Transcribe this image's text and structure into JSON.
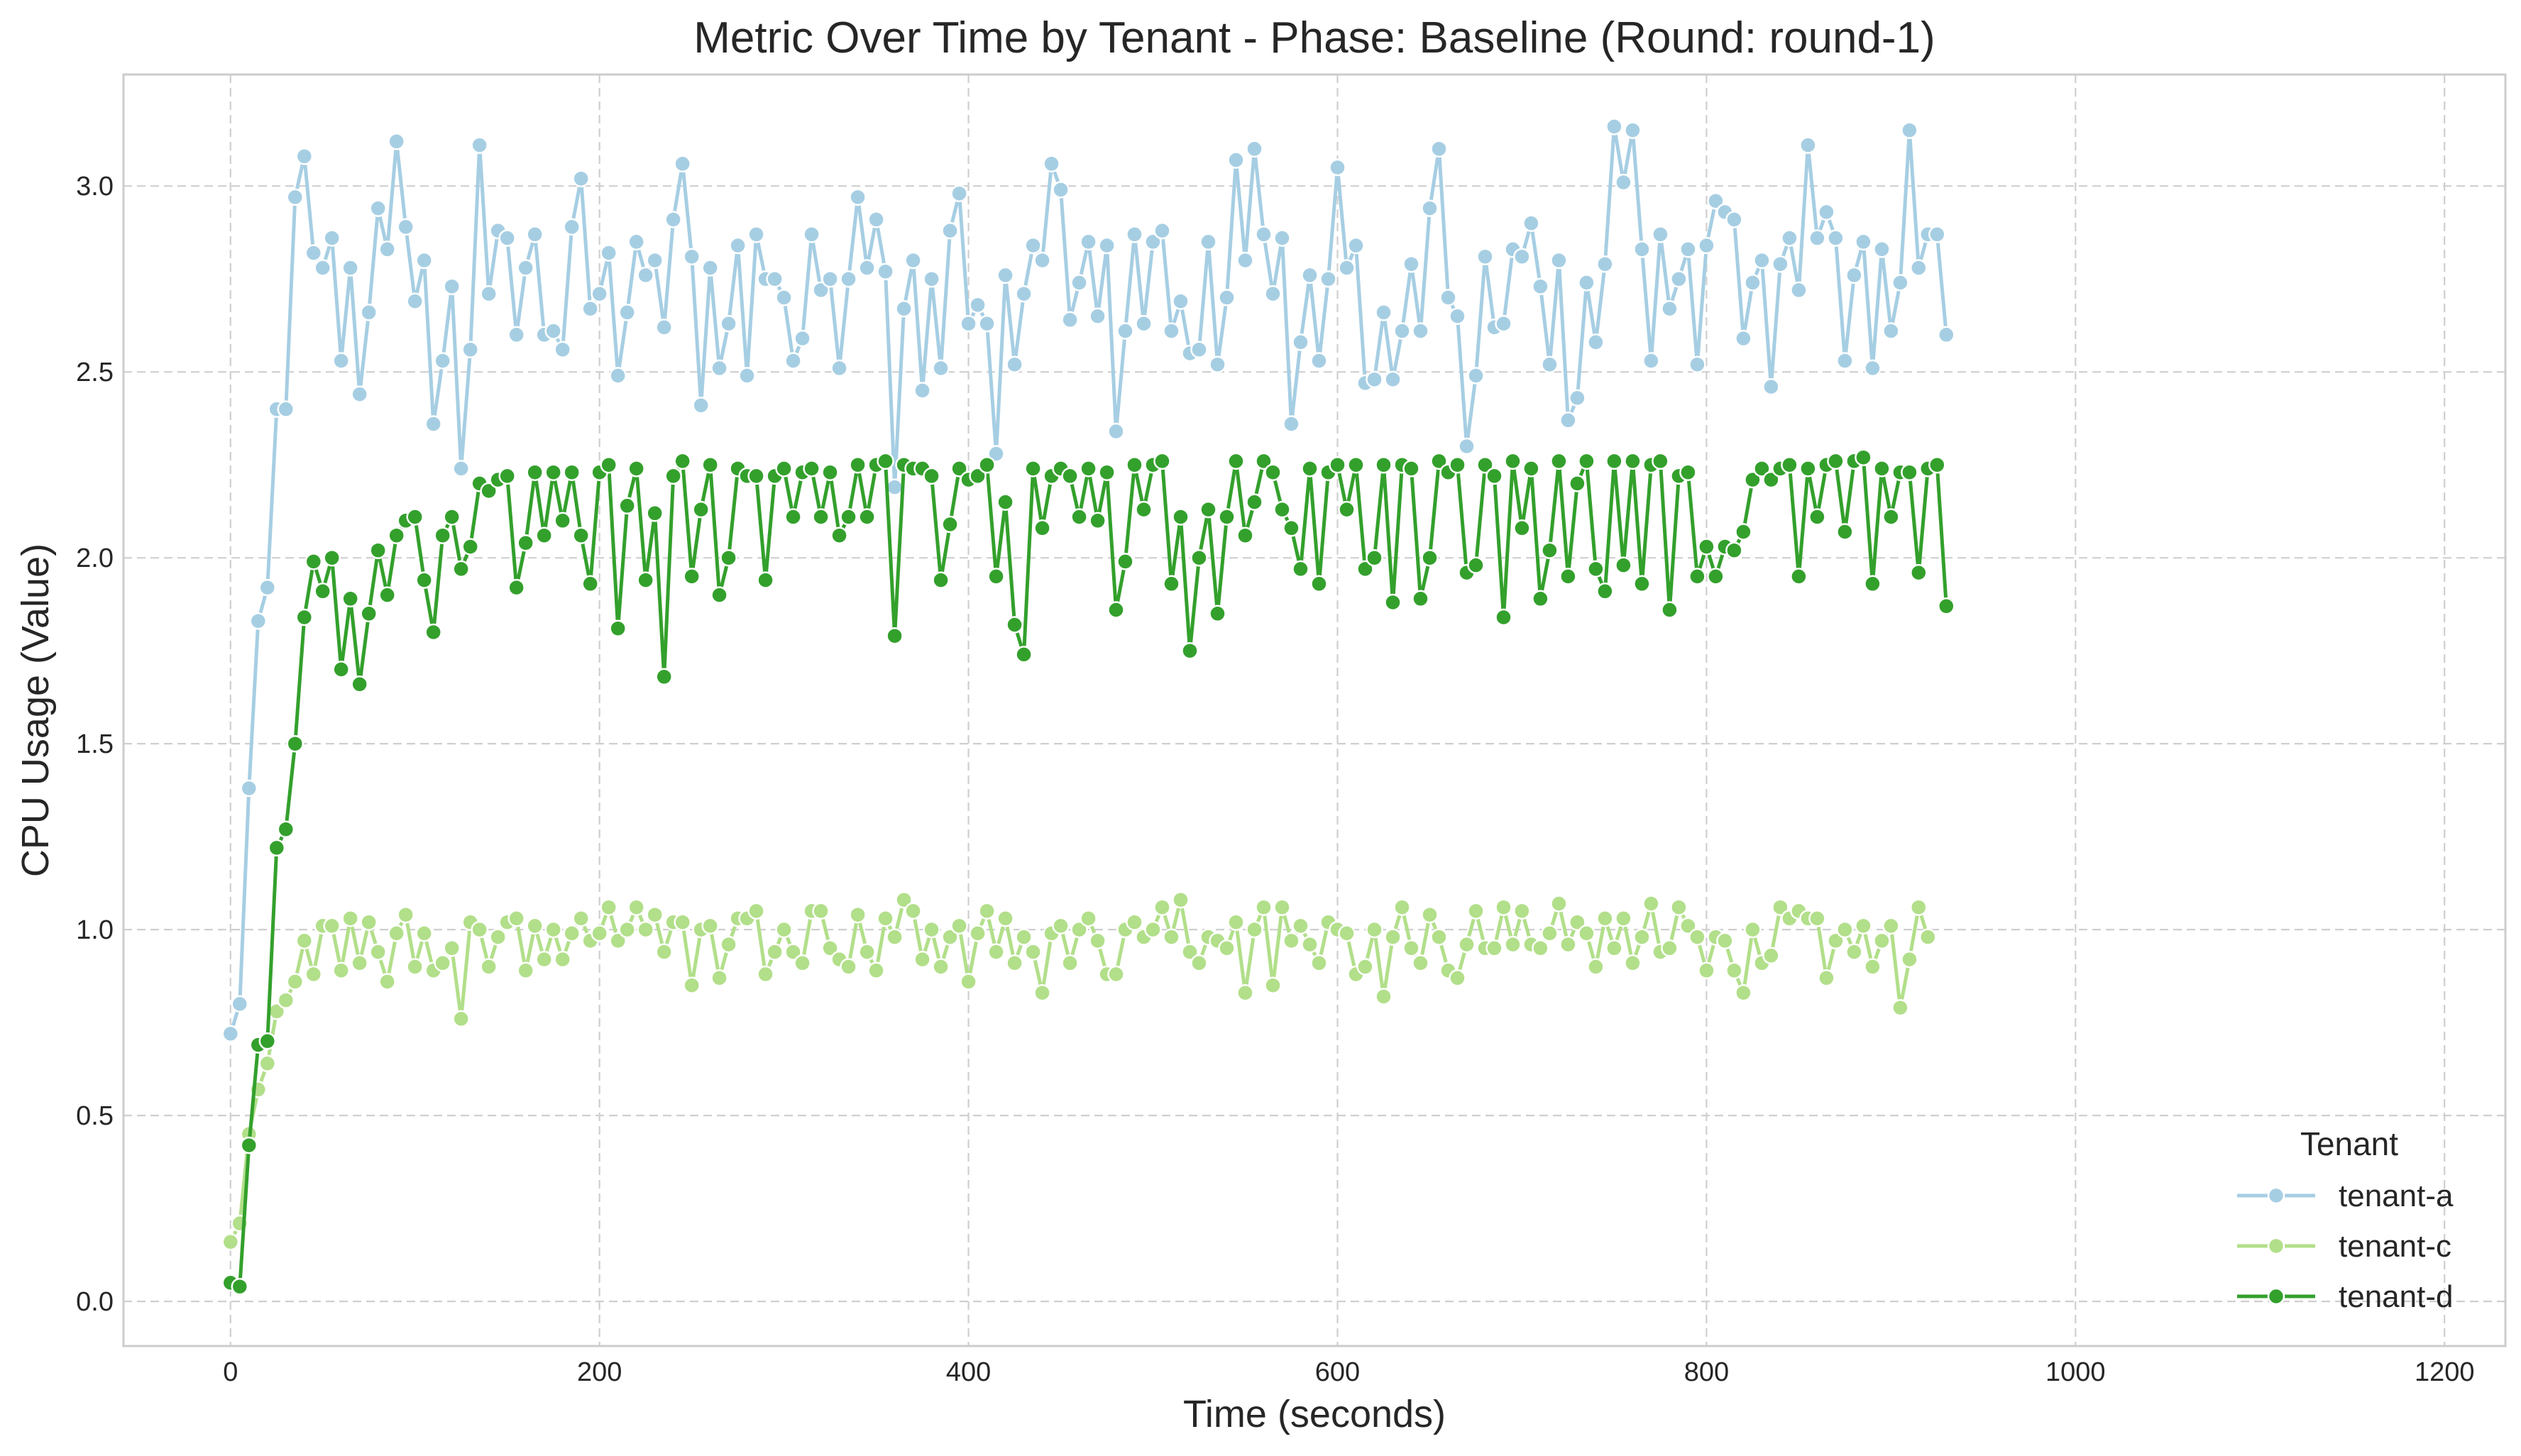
{
  "chart_data": {
    "type": "line",
    "title": "Metric Over Time by Tenant - Phase: Baseline (Round: round-1)",
    "xlabel": "Time (seconds)",
    "ylabel": "CPU Usage (Value)",
    "xlim": [
      -58,
      1233
    ],
    "ylim": [
      -0.12,
      3.3
    ],
    "xticks": [
      0,
      200,
      400,
      600,
      800,
      1000,
      1200
    ],
    "xtick_labels": [
      "0",
      "200",
      "400",
      "600",
      "800",
      "1000",
      "1200"
    ],
    "yticks": [
      0.0,
      0.5,
      1.0,
      1.5,
      2.0,
      2.5,
      3.0
    ],
    "ytick_labels": [
      "0.0",
      "0.5",
      "1.0",
      "1.5",
      "2.0",
      "2.5",
      "3.0"
    ],
    "grid": true,
    "legend": {
      "title": "Tenant",
      "position": "bottom-right"
    },
    "x_start": 0,
    "x_step": 5,
    "series": [
      {
        "name": "tenant-a",
        "color": "#a6cee3",
        "values": [
          0.72,
          0.8,
          1.38,
          1.83,
          1.92,
          2.4,
          2.4,
          2.97,
          3.08,
          2.82,
          2.78,
          2.86,
          2.53,
          2.78,
          2.44,
          2.66,
          2.94,
          2.83,
          3.12,
          2.89,
          2.69,
          2.8,
          2.36,
          2.53,
          2.73,
          2.24,
          2.56,
          3.11,
          2.71,
          2.88,
          2.86,
          2.6,
          2.78,
          2.87,
          2.6,
          2.61,
          2.56,
          2.89,
          3.02,
          2.67,
          2.71,
          2.82,
          2.49,
          2.66,
          2.85,
          2.76,
          2.8,
          2.62,
          2.91,
          3.06,
          2.81,
          2.41,
          2.78,
          2.51,
          2.63,
          2.84,
          2.49,
          2.87,
          2.75,
          2.75,
          2.7,
          2.53,
          2.59,
          2.87,
          2.72,
          2.75,
          2.51,
          2.75,
          2.97,
          2.78,
          2.91,
          2.77,
          2.19,
          2.67,
          2.8,
          2.45,
          2.75,
          2.51,
          2.88,
          2.98,
          2.63,
          2.68,
          2.63,
          2.28,
          2.76,
          2.52,
          2.71,
          2.84,
          2.8,
          3.06,
          2.99,
          2.64,
          2.74,
          2.85,
          2.65,
          2.84,
          2.34,
          2.61,
          2.87,
          2.63,
          2.85,
          2.88,
          2.61,
          2.69,
          2.55,
          2.56,
          2.85,
          2.52,
          2.7,
          3.07,
          2.8,
          3.1,
          2.87,
          2.71,
          2.86,
          2.36,
          2.58,
          2.76,
          2.53,
          2.75,
          3.05,
          2.78,
          2.84,
          2.47,
          2.48,
          2.66,
          2.48,
          2.61,
          2.79,
          2.61,
          2.94,
          3.1,
          2.7,
          2.65,
          2.3,
          2.49,
          2.81,
          2.62,
          2.63,
          2.83,
          2.81,
          2.9,
          2.73,
          2.52,
          2.8,
          2.37,
          2.43,
          2.74,
          2.58,
          2.79,
          3.16,
          3.01,
          3.15,
          2.83,
          2.53,
          2.87,
          2.67,
          2.75,
          2.83,
          2.52,
          2.84,
          2.96,
          2.93,
          2.91,
          2.59,
          2.74,
          2.8,
          2.46,
          2.79,
          2.86,
          2.72,
          3.11,
          2.86,
          2.93,
          2.86,
          2.53,
          2.76,
          2.85,
          2.51,
          2.83,
          2.61,
          2.74,
          3.15,
          2.78,
          2.87,
          2.87,
          2.6
        ]
      },
      {
        "name": "tenant-c",
        "color": "#b2df8a",
        "values": [
          0.16,
          0.21,
          0.45,
          0.57,
          0.64,
          0.78,
          0.81,
          0.86,
          0.97,
          0.88,
          1.01,
          1.01,
          0.89,
          1.03,
          0.91,
          1.02,
          0.94,
          0.86,
          0.99,
          1.04,
          0.9,
          0.99,
          0.89,
          0.91,
          0.95,
          0.76,
          1.02,
          1.0,
          0.9,
          0.98,
          1.02,
          1.03,
          0.89,
          1.01,
          0.92,
          1.0,
          0.92,
          0.99,
          1.03,
          0.97,
          0.99,
          1.06,
          0.97,
          1.0,
          1.06,
          1.0,
          1.04,
          0.94,
          1.02,
          1.02,
          0.85,
          1.0,
          1.01,
          0.87,
          0.96,
          1.03,
          1.03,
          1.05,
          0.88,
          0.94,
          1.0,
          0.94,
          0.91,
          1.05,
          1.05,
          0.95,
          0.92,
          0.9,
          1.04,
          0.94,
          0.89,
          1.03,
          0.98,
          1.08,
          1.05,
          0.92,
          1.0,
          0.9,
          0.98,
          1.01,
          0.86,
          0.99,
          1.05,
          0.94,
          1.03,
          0.91,
          0.98,
          0.94,
          0.83,
          0.99,
          1.01,
          0.91,
          1.0,
          1.03,
          0.97,
          0.88,
          0.88,
          1.0,
          1.02,
          0.98,
          1.0,
          1.06,
          0.98,
          1.08,
          0.94,
          0.91,
          0.98,
          0.97,
          0.95,
          1.02,
          0.83,
          1.0,
          1.06,
          0.85,
          1.06,
          0.97,
          1.01,
          0.96,
          0.91,
          1.02,
          1.0,
          0.99,
          0.88,
          0.9,
          1.0,
          0.82,
          0.98,
          1.06,
          0.95,
          0.91,
          1.04,
          0.98,
          0.89,
          0.87,
          0.96,
          1.05,
          0.95,
          0.95,
          1.06,
          0.96,
          1.05,
          0.96,
          0.95,
          0.99,
          1.07,
          0.96,
          1.02,
          0.99,
          0.9,
          1.03,
          0.95,
          1.03,
          0.91,
          0.98,
          1.07,
          0.94,
          0.95,
          1.06,
          1.01,
          0.98,
          0.89,
          0.98,
          0.97,
          0.89,
          0.83,
          1.0,
          0.91,
          0.93,
          1.06,
          1.03,
          1.05,
          1.03,
          1.03,
          0.87,
          0.97,
          1.0,
          0.94,
          1.01,
          0.9,
          0.97,
          1.01,
          0.79,
          0.92,
          1.06,
          0.98
        ]
      },
      {
        "name": "tenant-d",
        "color": "#33a02c",
        "values": [
          0.05,
          0.04,
          0.42,
          0.69,
          0.7,
          1.22,
          1.27,
          1.5,
          1.84,
          1.99,
          1.91,
          2.0,
          1.7,
          1.89,
          1.66,
          1.85,
          2.02,
          1.9,
          2.06,
          2.1,
          2.11,
          1.94,
          1.8,
          2.06,
          2.11,
          1.97,
          2.03,
          2.2,
          2.18,
          2.21,
          2.22,
          1.92,
          2.04,
          2.23,
          2.06,
          2.23,
          2.1,
          2.23,
          2.06,
          1.93,
          2.23,
          2.25,
          1.81,
          2.14,
          2.24,
          1.94,
          2.12,
          1.68,
          2.22,
          2.26,
          1.95,
          2.13,
          2.25,
          1.9,
          2.0,
          2.24,
          2.22,
          2.22,
          1.94,
          2.22,
          2.24,
          2.11,
          2.23,
          2.24,
          2.11,
          2.23,
          2.06,
          2.11,
          2.25,
          2.11,
          2.25,
          2.26,
          1.79,
          2.25,
          2.24,
          2.24,
          2.22,
          1.94,
          2.09,
          2.24,
          2.21,
          2.22,
          2.25,
          1.95,
          2.15,
          1.82,
          1.74,
          2.24,
          2.08,
          2.22,
          2.24,
          2.22,
          2.11,
          2.24,
          2.1,
          2.23,
          1.86,
          1.99,
          2.25,
          2.13,
          2.25,
          2.26,
          1.93,
          2.11,
          1.75,
          2.0,
          2.13,
          1.85,
          2.11,
          2.26,
          2.06,
          2.15,
          2.26,
          2.23,
          2.13,
          2.08,
          1.97,
          2.24,
          1.93,
          2.23,
          2.25,
          2.13,
          2.25,
          1.97,
          2.0,
          2.25,
          1.88,
          2.25,
          2.24,
          1.89,
          2.0,
          2.26,
          2.23,
          2.25,
          1.96,
          1.98,
          2.25,
          2.22,
          1.84,
          2.26,
          2.08,
          2.24,
          1.89,
          2.02,
          2.26,
          1.95,
          2.2,
          2.26,
          1.97,
          1.91,
          2.26,
          1.98,
          2.26,
          1.93,
          2.25,
          2.26,
          1.86,
          2.22,
          2.23,
          1.95,
          2.03,
          1.95,
          2.03,
          2.02,
          2.07,
          2.21,
          2.24,
          2.21,
          2.24,
          2.25,
          1.95,
          2.24,
          2.11,
          2.25,
          2.26,
          2.07,
          2.26,
          2.27,
          1.93,
          2.24,
          2.11,
          2.23,
          2.23,
          1.96,
          2.24,
          2.25,
          1.87
        ]
      }
    ]
  }
}
